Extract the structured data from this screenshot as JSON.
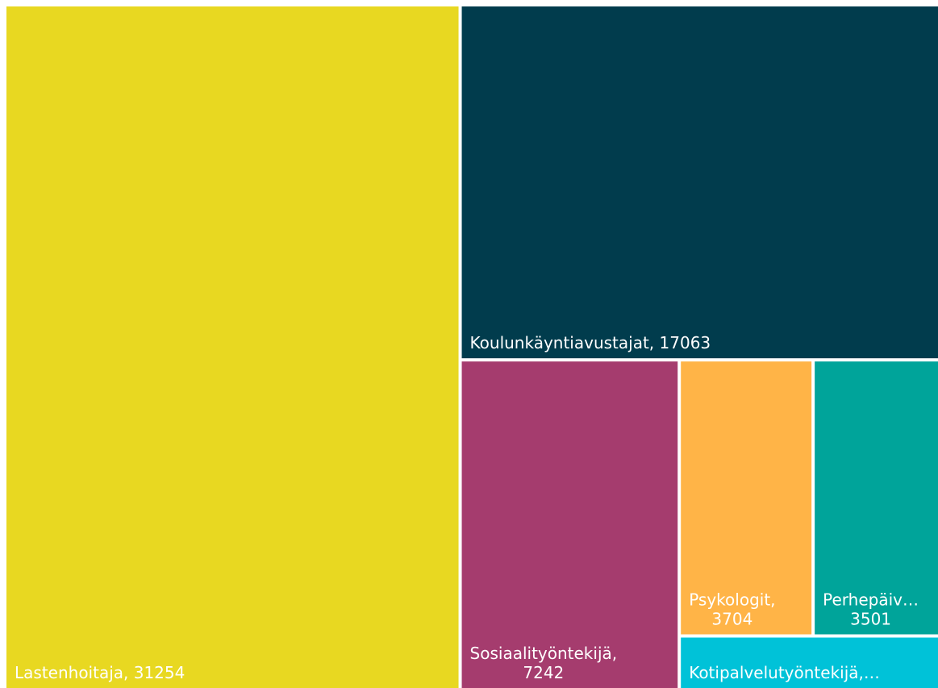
{
  "chart_data": {
    "type": "treemap",
    "labels": [
      [
        "Lastenhoitaja, 31254"
      ],
      [
        "Koulunkäyntiavustajat, 17063"
      ],
      [
        "Sosiaalityöntekijä,",
        "7242"
      ],
      [
        "Psykologit,",
        "3704"
      ],
      [
        "Perhepäiv…",
        "3501"
      ],
      [
        "Kotipalvelutyöntekijä,…"
      ]
    ],
    "values": [
      31254,
      17063,
      7242,
      3704,
      3501,
      1400
    ],
    "colors": [
      "#e8d821",
      "#013c4d",
      "#a53c6e",
      "#ffb447",
      "#00a49a",
      "#00c2d8"
    ]
  }
}
